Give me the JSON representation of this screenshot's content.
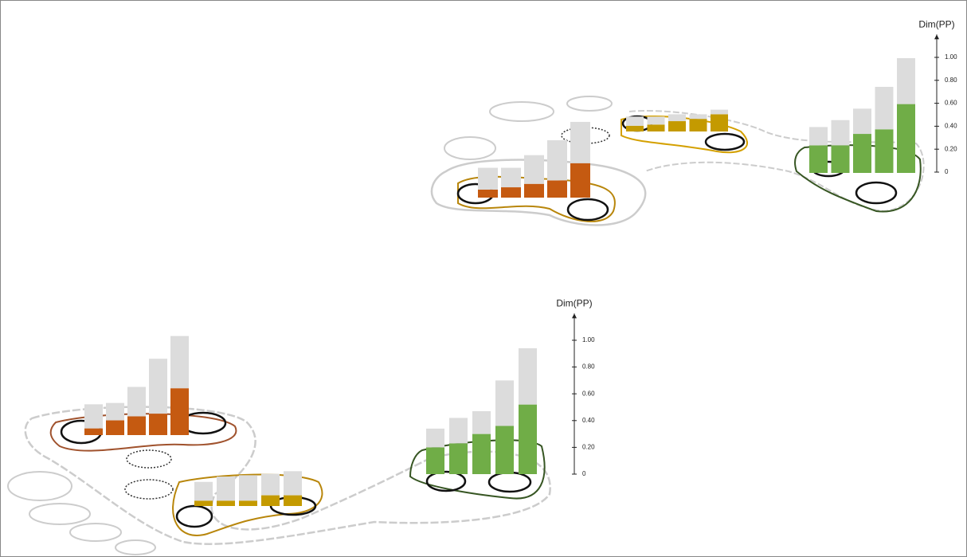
{
  "chart_data": [
    {
      "type": "bar",
      "y_label": "Dim(PP)",
      "ylim": [
        0,
        1.2
      ],
      "yticks": [
        0,
        {
          "value": 0.2,
          "label": "0.20"
        },
        {
          "value": 0.4,
          "label": "0.40"
        },
        {
          "value": 0.6,
          "label": "0.60"
        },
        {
          "value": 0.8,
          "label": "0.80"
        },
        {
          "value": 1.0,
          "label": "1.00"
        }
      ],
      "groups": [
        {
          "series": [
            {
              "color": "#c55a11",
              "values": [
                0.07,
                0.09,
                0.12,
                0.15,
                0.3
              ]
            },
            {
              "color": "#dcdcdc",
              "values": [
                0.19,
                0.17,
                0.25,
                0.35,
                0.36
              ]
            }
          ]
        },
        {
          "series": [
            {
              "color": "#c49a00",
              "values": [
                0.05,
                0.06,
                0.09,
                0.11,
                0.15
              ]
            },
            {
              "color": "#dcdcdc",
              "values": [
                0.08,
                0.07,
                0.06,
                0.04,
                0.04
              ]
            }
          ]
        },
        {
          "series": [
            {
              "color": "#70ad47",
              "values": [
                0.24,
                0.24,
                0.34,
                0.38,
                0.6
              ]
            },
            {
              "color": "#dcdcdc",
              "values": [
                0.16,
                0.22,
                0.22,
                0.37,
                0.4
              ]
            }
          ]
        }
      ]
    },
    {
      "type": "bar",
      "y_label": "Dim(PP)",
      "ylim": [
        0,
        1.2
      ],
      "yticks": [
        0,
        {
          "value": 0.2,
          "label": "0.20"
        },
        {
          "value": 0.4,
          "label": "0.40"
        },
        {
          "value": 0.6,
          "label": "0.60"
        },
        {
          "value": 0.8,
          "label": "0.80"
        },
        {
          "value": 1.0,
          "label": "1.00"
        }
      ],
      "groups": [
        {
          "series": [
            {
              "color": "#c55a11",
              "values": [
                0.05,
                0.11,
                0.14,
                0.16,
                0.35
              ]
            },
            {
              "color": "#dcdcdc",
              "values": [
                0.18,
                0.13,
                0.22,
                0.41,
                0.39
              ]
            }
          ]
        },
        {
          "series": [
            {
              "color": "#c49a00",
              "values": [
                0.04,
                0.04,
                0.04,
                0.08,
                0.08
              ]
            },
            {
              "color": "#dcdcdc",
              "values": [
                0.14,
                0.18,
                0.19,
                0.16,
                0.18
              ]
            }
          ]
        },
        {
          "series": [
            {
              "color": "#70ad47",
              "values": [
                0.2,
                0.23,
                0.3,
                0.36,
                0.52
              ]
            },
            {
              "color": "#dcdcdc",
              "values": [
                0.14,
                0.19,
                0.17,
                0.34,
                0.42
              ]
            }
          ]
        }
      ]
    }
  ]
}
